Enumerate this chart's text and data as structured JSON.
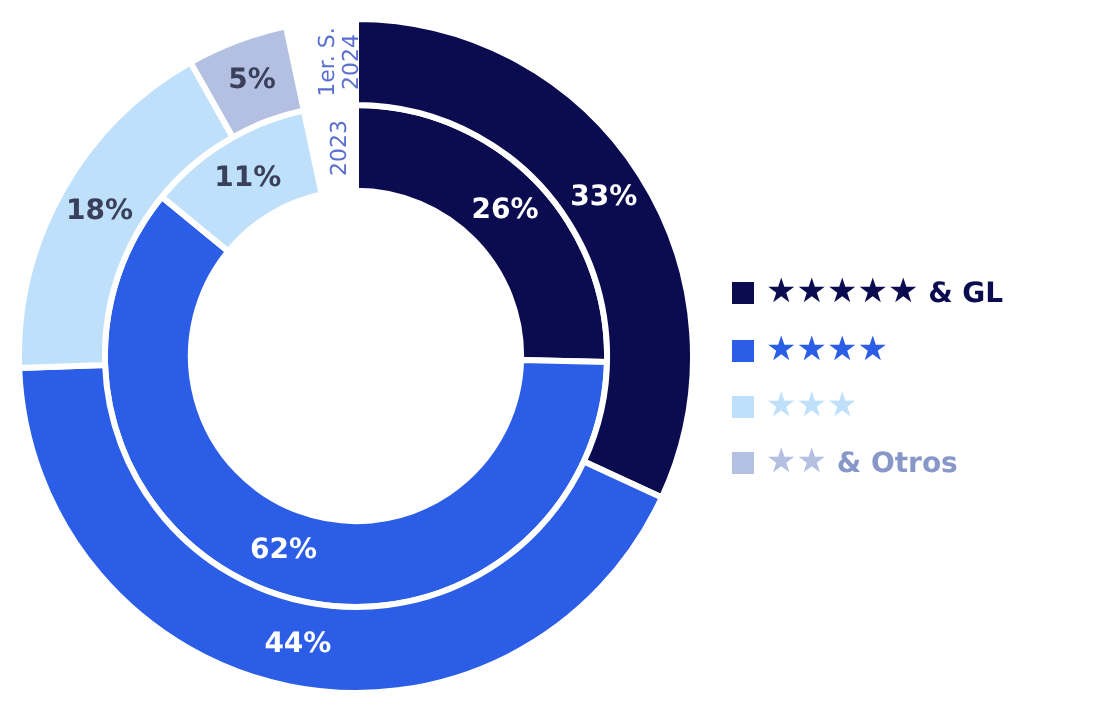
{
  "chart_data": {
    "type": "donut",
    "categories": [
      "★★★★★ & GL",
      "★★★★",
      "★★★",
      "★★ & Otros"
    ],
    "colors": [
      "#0b0b4f",
      "#2b5de6",
      "#bfe0fa",
      "#b3c0e2"
    ],
    "series": [
      {
        "name": "1er. S. 2024",
        "values": [
          33,
          44,
          18,
          5
        ],
        "value_labels": [
          "33%",
          "44%",
          "18%",
          "5%"
        ]
      },
      {
        "name": "2023",
        "values": [
          26,
          62,
          11,
          null
        ],
        "value_labels": [
          "26%",
          "62%",
          "11%",
          null
        ]
      }
    ],
    "legend": "right"
  }
}
